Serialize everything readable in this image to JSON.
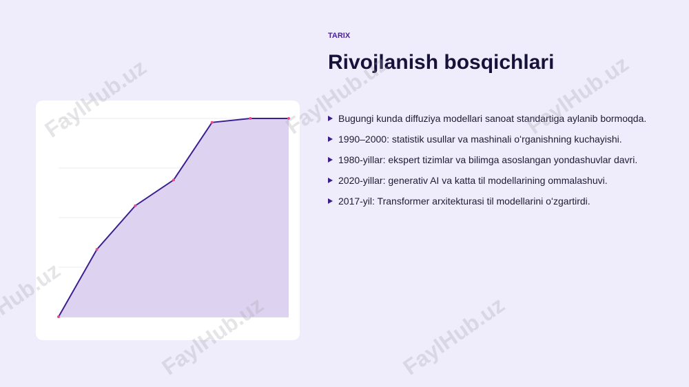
{
  "header": {
    "eyebrow": "TARIX",
    "title": "Rivojlanish bosqichlari"
  },
  "bullets": [
    "Bugungi kunda diffuziya modellari sanoat standartiga aylanib bormoqda.",
    "1990–2000: statistik usullar va mashinali oʻrganishning kuchayishi.",
    "1980-yillar: ekspert tizimlar va bilimga asoslangan yondashuvlar davri.",
    "2020-yillar: generativ AI va katta til modellarining ommalashuvi.",
    "2017-yil: Transformer arxitekturasi til modellarini oʻzgartirdi."
  ],
  "watermark": "FaylHub.uz",
  "chart_data": {
    "type": "area",
    "categories": [
      null,
      null,
      null,
      null,
      null,
      null,
      null
    ],
    "values": [
      0,
      34,
      56,
      69,
      98,
      100,
      100
    ],
    "color": "#3b1f8f",
    "fill_color": "#ddd3f0",
    "marker_color": "#e0508a",
    "ylim": [
      0,
      100
    ],
    "yticks": [
      0,
      25,
      50,
      75,
      100
    ],
    "grid": true
  }
}
